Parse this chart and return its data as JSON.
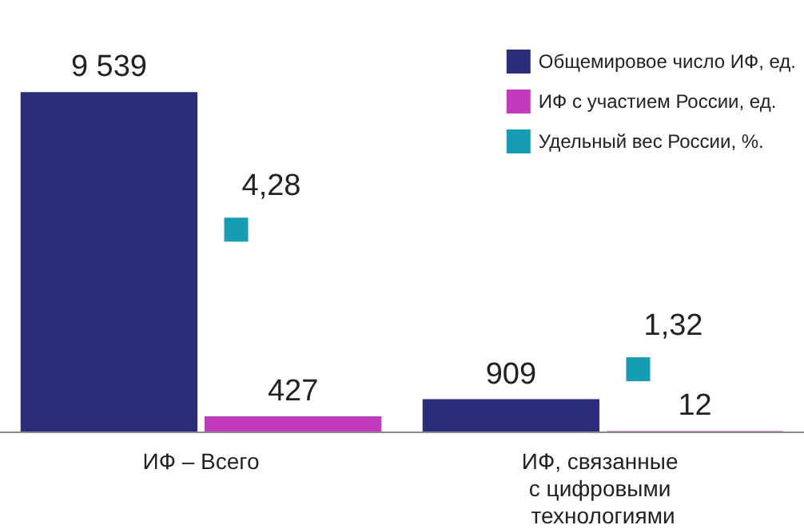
{
  "chart_data": {
    "type": "bar",
    "categories": [
      "ИФ – Всего",
      "ИФ, связанные с цифровыми технологиями"
    ],
    "series": [
      {
        "name": "Общемировое число ИФ, ед.",
        "color": "#2b2d78",
        "values": [
          9539,
          909
        ],
        "value_labels": [
          "9 539",
          "909"
        ]
      },
      {
        "name": "ИФ с участием России, ед.",
        "color": "#c23bbd",
        "values": [
          427,
          12
        ],
        "value_labels": [
          "427",
          "12"
        ]
      },
      {
        "name": "Удельный вес России, %.",
        "color": "#169db3",
        "type": "scatter",
        "axis": "y2",
        "marker": "square",
        "x": [
          "ИФ – Всего",
          "ИФ, связанные с цифровыми технологиями"
        ],
        "values": [
          4.28,
          1.32
        ],
        "value_labels": [
          "4,28",
          "1,32"
        ]
      }
    ],
    "legend": "top right",
    "tick_labels": "x"
  }
}
